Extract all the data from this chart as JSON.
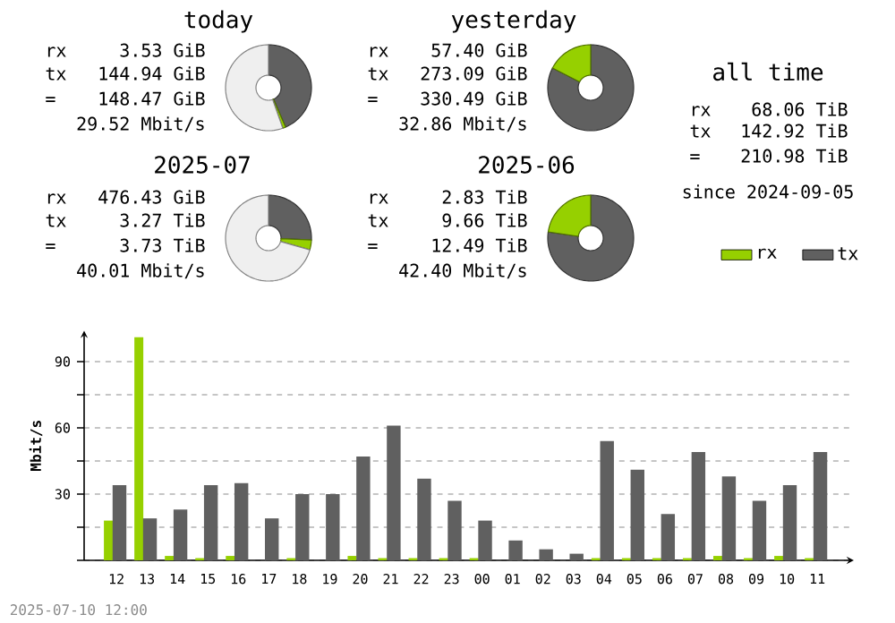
{
  "chart_data": [
    {
      "type": "donut",
      "title": "today",
      "categories": [
        null,
        null,
        null
      ],
      "values": [
        43.5,
        1.1,
        55.4
      ],
      "colors": [
        "#606060",
        "#96d000",
        "#efefef"
      ],
      "annotations": [
        "rx",
        "3.53 GiB",
        "tx",
        "144.94 GiB",
        "=",
        "148.47 GiB",
        "29.52 Mbit/s"
      ]
    },
    {
      "type": "donut",
      "title": "yesterday",
      "categories": [
        null,
        null
      ],
      "values": [
        82.6,
        17.4
      ],
      "colors": [
        "#606060",
        "#96d000"
      ],
      "annotations": [
        "rx",
        "57.40 GiB",
        "tx",
        "273.09 GiB",
        "=",
        "330.49 GiB",
        "32.86 Mbit/s"
      ]
    },
    {
      "type": "other",
      "title": "all time",
      "annotations": [
        "rx",
        "68.06 TiB",
        "tx",
        "142.92 TiB",
        "=",
        "210.98 TiB",
        "since 2024-09-05"
      ]
    },
    {
      "type": "donut",
      "title": "2025-07",
      "categories": [
        null,
        null,
        null
      ],
      "values": [
        25.7,
        3.7,
        70.6
      ],
      "colors": [
        "#606060",
        "#96d000",
        "#efefef"
      ],
      "annotations": [
        "rx",
        "476.43 GiB",
        "tx",
        "3.27 TiB",
        "=",
        "3.73 TiB",
        "40.01 Mbit/s"
      ]
    },
    {
      "type": "donut",
      "title": "2025-06",
      "categories": [
        null,
        null
      ],
      "values": [
        77.3,
        22.7
      ],
      "colors": [
        "#606060",
        "#96d000"
      ],
      "annotations": [
        "rx",
        "2.83 TiB",
        "tx",
        "9.66 TiB",
        "=",
        "12.49 TiB",
        "42.40 Mbit/s"
      ]
    },
    {
      "type": "bar",
      "ylabel": "Mbit/s",
      "grid": "y",
      "legend": "top right",
      "categories": [
        "12",
        "13",
        "14",
        "15",
        "16",
        "17",
        "18",
        "19",
        "20",
        "21",
        "22",
        "23",
        "00",
        "01",
        "02",
        "03",
        "04",
        "05",
        "06",
        "07",
        "08",
        "09",
        "10",
        "11"
      ],
      "ylim": [
        0,
        104
      ],
      "yticks": [
        {
          "value": 0,
          "label": null
        },
        {
          "value": 15,
          "label": null
        },
        30,
        {
          "value": 45,
          "label": null
        },
        60,
        {
          "value": 75,
          "label": null
        },
        90
      ],
      "series": [
        {
          "name": "rx",
          "color": "#96d000",
          "values": [
            18,
            101,
            2,
            1,
            2,
            0,
            1,
            0,
            2,
            1,
            1,
            1,
            1,
            0,
            0,
            0,
            1,
            1,
            1,
            1,
            2,
            1,
            2,
            1
          ]
        },
        {
          "name": "tx",
          "color": "#606060",
          "values": [
            34,
            19,
            23,
            34,
            35,
            19,
            30,
            30,
            47,
            61,
            37,
            27,
            18,
            9,
            5,
            3,
            54,
            41,
            21,
            49,
            38,
            27,
            34,
            49
          ]
        }
      ],
      "annotations": [
        "2025-07-10 12:00"
      ]
    }
  ]
}
